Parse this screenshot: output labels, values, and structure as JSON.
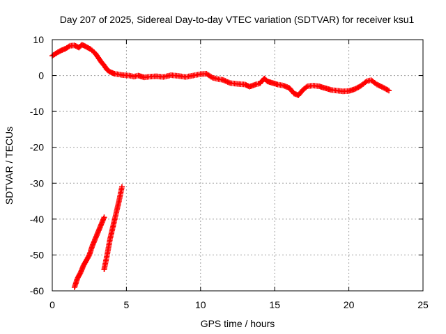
{
  "chart_data": {
    "type": "scatter",
    "title": "Day 207 of 2025, Sidereal Day-to-day VTEC variation (SDTVAR) for receiver ksu1",
    "xlabel": "GPS time / hours",
    "ylabel": "SDTVAR / TECUs",
    "xlim": [
      0,
      25
    ],
    "ylim": [
      -60,
      10
    ],
    "xticks": [
      "0",
      "5",
      "10",
      "15",
      "20",
      "25"
    ],
    "yticks": [
      "10",
      "0",
      "-10",
      "-20",
      "-30",
      "-40",
      "-50",
      "-60"
    ],
    "grid": true,
    "marker": "plus",
    "series": [
      {
        "name": "SDTVAR",
        "color": "#ff0000",
        "points": [
          [
            0.0,
            5.5
          ],
          [
            0.3,
            6.3
          ],
          [
            0.6,
            7.0
          ],
          [
            0.9,
            7.5
          ],
          [
            1.2,
            8.3
          ],
          [
            1.5,
            8.4
          ],
          [
            1.8,
            7.8
          ],
          [
            2.0,
            8.6
          ],
          [
            2.3,
            8.0
          ],
          [
            2.6,
            7.3
          ],
          [
            2.9,
            6.2
          ],
          [
            3.1,
            5.0
          ],
          [
            3.3,
            3.8
          ],
          [
            3.5,
            2.8
          ],
          [
            3.7,
            1.6
          ],
          [
            3.9,
            1.0
          ],
          [
            4.2,
            0.5
          ],
          [
            4.5,
            0.3
          ],
          [
            4.8,
            0.1
          ],
          [
            5.2,
            0.0
          ],
          [
            5.5,
            -0.3
          ],
          [
            5.8,
            0.0
          ],
          [
            6.2,
            -0.5
          ],
          [
            6.6,
            -0.3
          ],
          [
            7.0,
            -0.2
          ],
          [
            7.5,
            -0.4
          ],
          [
            8.0,
            0.1
          ],
          [
            8.5,
            -0.1
          ],
          [
            9.0,
            -0.4
          ],
          [
            9.5,
            0.0
          ],
          [
            10.0,
            0.4
          ],
          [
            10.4,
            0.5
          ],
          [
            10.8,
            -0.6
          ],
          [
            11.2,
            -1.0
          ],
          [
            11.5,
            -1.2
          ],
          [
            12.0,
            -2.1
          ],
          [
            12.4,
            -2.3
          ],
          [
            13.0,
            -2.5
          ],
          [
            13.3,
            -3.1
          ],
          [
            13.7,
            -2.5
          ],
          [
            14.0,
            -2.2
          ],
          [
            14.3,
            -0.8
          ],
          [
            14.5,
            -1.6
          ],
          [
            14.8,
            -2.0
          ],
          [
            15.2,
            -2.5
          ],
          [
            15.6,
            -2.8
          ],
          [
            16.0,
            -3.5
          ],
          [
            16.3,
            -5.0
          ],
          [
            16.6,
            -5.5
          ],
          [
            16.9,
            -4.0
          ],
          [
            17.2,
            -3.0
          ],
          [
            17.6,
            -2.8
          ],
          [
            18.0,
            -3.0
          ],
          [
            18.4,
            -3.5
          ],
          [
            18.8,
            -4.0
          ],
          [
            19.2,
            -4.2
          ],
          [
            19.6,
            -4.4
          ],
          [
            20.0,
            -4.3
          ],
          [
            20.4,
            -3.8
          ],
          [
            20.8,
            -2.9
          ],
          [
            21.2,
            -1.6
          ],
          [
            21.5,
            -1.3
          ],
          [
            21.9,
            -2.5
          ],
          [
            22.3,
            -3.3
          ],
          [
            22.7,
            -4.2
          ],
          [
            1.5,
            -59.0
          ],
          [
            1.7,
            -56.5
          ],
          [
            1.9,
            -55.0
          ],
          [
            2.1,
            -53.0
          ],
          [
            2.3,
            -51.5
          ],
          [
            2.5,
            -50.0
          ],
          [
            2.7,
            -47.5
          ],
          [
            2.9,
            -45.5
          ],
          [
            3.1,
            -43.5
          ],
          [
            3.3,
            -41.5
          ],
          [
            3.5,
            -39.5
          ],
          [
            3.5,
            -54.0
          ],
          [
            3.7,
            -50.0
          ],
          [
            3.9,
            -45.5
          ],
          [
            4.1,
            -42.0
          ],
          [
            4.3,
            -38.5
          ],
          [
            4.5,
            -35.0
          ],
          [
            4.7,
            -31.0
          ]
        ]
      }
    ]
  }
}
